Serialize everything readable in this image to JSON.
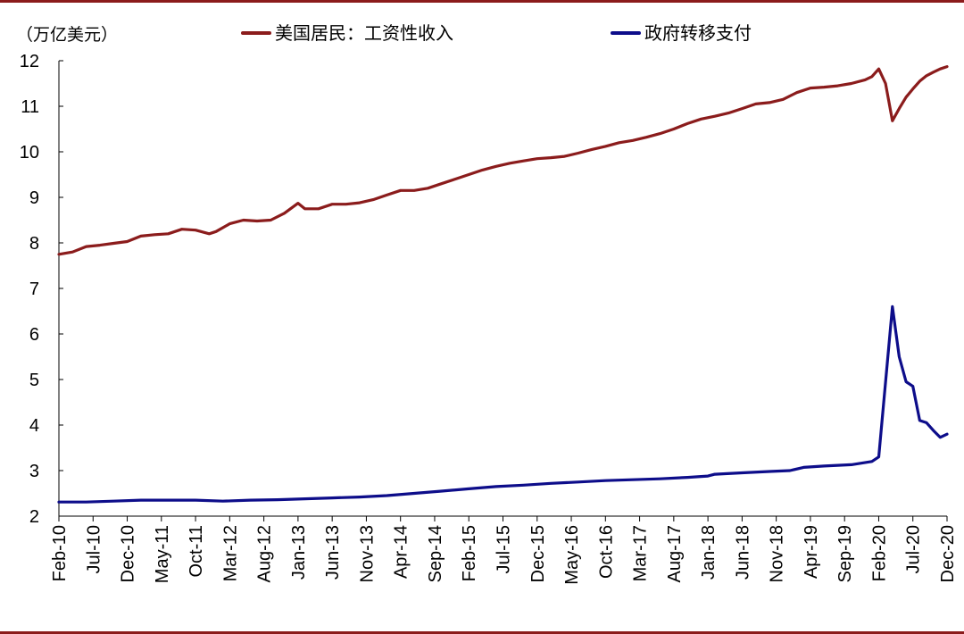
{
  "chart_data": {
    "type": "line",
    "unit_label": "（万亿美元）",
    "ylim": [
      2,
      12
    ],
    "yticks": [
      "2",
      "3",
      "4",
      "5",
      "6",
      "7",
      "8",
      "9",
      "10",
      "11",
      "12"
    ],
    "xlim": [
      "2010-02",
      "2020-12"
    ],
    "xticks": [
      {
        "label": "Feb-10",
        "date": "2010-02"
      },
      {
        "label": "Jul-10",
        "date": "2010-07"
      },
      {
        "label": "Dec-10",
        "date": "2010-12"
      },
      {
        "label": "May-11",
        "date": "2011-05"
      },
      {
        "label": "Oct-11",
        "date": "2011-10"
      },
      {
        "label": "Mar-12",
        "date": "2012-03"
      },
      {
        "label": "Aug-12",
        "date": "2012-08"
      },
      {
        "label": "Jan-13",
        "date": "2013-01"
      },
      {
        "label": "Jun-13",
        "date": "2013-06"
      },
      {
        "label": "Nov-13",
        "date": "2013-11"
      },
      {
        "label": "Apr-14",
        "date": "2014-04"
      },
      {
        "label": "Sep-14",
        "date": "2014-09"
      },
      {
        "label": "Feb-15",
        "date": "2015-02"
      },
      {
        "label": "Jul-15",
        "date": "2015-07"
      },
      {
        "label": "Dec-15",
        "date": "2015-12"
      },
      {
        "label": "May-16",
        "date": "2016-05"
      },
      {
        "label": "Oct-16",
        "date": "2016-10"
      },
      {
        "label": "Mar-17",
        "date": "2017-03"
      },
      {
        "label": "Aug-17",
        "date": "2017-08"
      },
      {
        "label": "Jan-18",
        "date": "2018-01"
      },
      {
        "label": "Jun-18",
        "date": "2018-06"
      },
      {
        "label": "Nov-18",
        "date": "2018-11"
      },
      {
        "label": "Apr-19",
        "date": "2019-04"
      },
      {
        "label": "Sep-19",
        "date": "2019-09"
      },
      {
        "label": "Feb-20",
        "date": "2020-02"
      },
      {
        "label": "Jul-20",
        "date": "2020-07"
      },
      {
        "label": "Dec-20",
        "date": "2020-12"
      }
    ],
    "legend_position": "top",
    "series": [
      {
        "name": "美国居民：工资性收入",
        "color": "#8b1c1c",
        "points": [
          [
            "2010-02",
            7.75
          ],
          [
            "2010-04",
            7.8
          ],
          [
            "2010-06",
            7.92
          ],
          [
            "2010-08",
            7.95
          ],
          [
            "2010-10",
            7.99
          ],
          [
            "2010-12",
            8.03
          ],
          [
            "2011-02",
            8.15
          ],
          [
            "2011-04",
            8.18
          ],
          [
            "2011-06",
            8.2
          ],
          [
            "2011-08",
            8.3
          ],
          [
            "2011-10",
            8.28
          ],
          [
            "2011-12",
            8.2
          ],
          [
            "2012-01",
            8.25
          ],
          [
            "2012-03",
            8.42
          ],
          [
            "2012-05",
            8.5
          ],
          [
            "2012-07",
            8.48
          ],
          [
            "2012-09",
            8.5
          ],
          [
            "2012-11",
            8.65
          ],
          [
            "2013-01",
            8.87
          ],
          [
            "2013-02",
            8.75
          ],
          [
            "2013-04",
            8.75
          ],
          [
            "2013-06",
            8.85
          ],
          [
            "2013-08",
            8.85
          ],
          [
            "2013-10",
            8.88
          ],
          [
            "2013-12",
            8.95
          ],
          [
            "2014-02",
            9.05
          ],
          [
            "2014-04",
            9.15
          ],
          [
            "2014-06",
            9.15
          ],
          [
            "2014-08",
            9.2
          ],
          [
            "2014-10",
            9.3
          ],
          [
            "2014-12",
            9.4
          ],
          [
            "2015-02",
            9.5
          ],
          [
            "2015-04",
            9.6
          ],
          [
            "2015-06",
            9.68
          ],
          [
            "2015-08",
            9.75
          ],
          [
            "2015-10",
            9.8
          ],
          [
            "2015-12",
            9.85
          ],
          [
            "2016-02",
            9.87
          ],
          [
            "2016-04",
            9.9
          ],
          [
            "2016-06",
            9.97
          ],
          [
            "2016-08",
            10.05
          ],
          [
            "2016-10",
            10.12
          ],
          [
            "2016-12",
            10.2
          ],
          [
            "2017-02",
            10.25
          ],
          [
            "2017-04",
            10.32
          ],
          [
            "2017-06",
            10.4
          ],
          [
            "2017-08",
            10.5
          ],
          [
            "2017-10",
            10.62
          ],
          [
            "2017-12",
            10.72
          ],
          [
            "2018-02",
            10.78
          ],
          [
            "2018-04",
            10.85
          ],
          [
            "2018-06",
            10.95
          ],
          [
            "2018-08",
            11.05
          ],
          [
            "2018-10",
            11.08
          ],
          [
            "2018-12",
            11.15
          ],
          [
            "2019-02",
            11.3
          ],
          [
            "2019-04",
            11.4
          ],
          [
            "2019-06",
            11.42
          ],
          [
            "2019-08",
            11.45
          ],
          [
            "2019-10",
            11.5
          ],
          [
            "2019-12",
            11.58
          ],
          [
            "2020-01",
            11.65
          ],
          [
            "2020-02",
            11.82
          ],
          [
            "2020-03",
            11.5
          ],
          [
            "2020-04",
            10.68
          ],
          [
            "2020-05",
            10.95
          ],
          [
            "2020-06",
            11.2
          ],
          [
            "2020-07",
            11.38
          ],
          [
            "2020-08",
            11.55
          ],
          [
            "2020-09",
            11.67
          ],
          [
            "2020-10",
            11.75
          ],
          [
            "2020-11",
            11.82
          ],
          [
            "2020-12",
            11.87
          ]
        ]
      },
      {
        "name": "政府转移支付",
        "color": "#0d0d8a",
        "points": [
          [
            "2010-02",
            2.31
          ],
          [
            "2010-06",
            2.31
          ],
          [
            "2010-10",
            2.33
          ],
          [
            "2011-02",
            2.35
          ],
          [
            "2011-06",
            2.35
          ],
          [
            "2011-10",
            2.35
          ],
          [
            "2012-02",
            2.33
          ],
          [
            "2012-06",
            2.35
          ],
          [
            "2012-10",
            2.36
          ],
          [
            "2013-02",
            2.38
          ],
          [
            "2013-06",
            2.4
          ],
          [
            "2013-10",
            2.42
          ],
          [
            "2014-02",
            2.45
          ],
          [
            "2014-06",
            2.5
          ],
          [
            "2014-10",
            2.55
          ],
          [
            "2015-02",
            2.6
          ],
          [
            "2015-06",
            2.65
          ],
          [
            "2015-10",
            2.68
          ],
          [
            "2016-02",
            2.72
          ],
          [
            "2016-06",
            2.75
          ],
          [
            "2016-10",
            2.78
          ],
          [
            "2017-02",
            2.8
          ],
          [
            "2017-06",
            2.82
          ],
          [
            "2017-10",
            2.85
          ],
          [
            "2018-01",
            2.88
          ],
          [
            "2018-02",
            2.92
          ],
          [
            "2018-06",
            2.95
          ],
          [
            "2018-10",
            2.98
          ],
          [
            "2019-01",
            3.0
          ],
          [
            "2019-03",
            3.07
          ],
          [
            "2019-06",
            3.1
          ],
          [
            "2019-10",
            3.13
          ],
          [
            "2020-01",
            3.2
          ],
          [
            "2020-02",
            3.3
          ],
          [
            "2020-04",
            6.6
          ],
          [
            "2020-05",
            5.5
          ],
          [
            "2020-06",
            4.95
          ],
          [
            "2020-07",
            4.85
          ],
          [
            "2020-08",
            4.1
          ],
          [
            "2020-09",
            4.05
          ],
          [
            "2020-10",
            3.88
          ],
          [
            "2020-11",
            3.73
          ],
          [
            "2020-12",
            3.8
          ]
        ]
      }
    ]
  }
}
